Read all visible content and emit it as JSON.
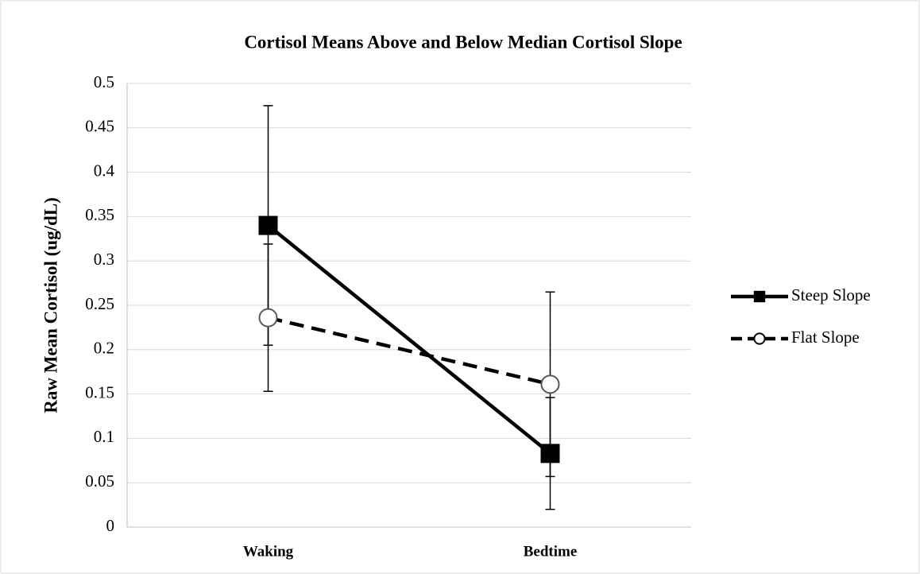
{
  "chart_data": {
    "type": "line",
    "title": "Cortisol Means Above and Below Median Cortisol Slope",
    "y_label": "Raw Mean Cortisol (ug/dL)",
    "categories": [
      "Waking",
      "Bedtime"
    ],
    "series": [
      {
        "name": "Steep Slope",
        "color": "#000000",
        "marker": "square",
        "dashed": false,
        "values": [
          0.34,
          0.083
        ],
        "errors": [
          0.135,
          0.063
        ]
      },
      {
        "name": "Flat Slope",
        "color": "#000000",
        "marker": "circle",
        "dashed": true,
        "values": [
          0.236,
          0.161
        ],
        "errors": [
          0.083,
          0.104
        ]
      }
    ],
    "ylim": [
      0,
      0.5
    ],
    "yticks": [
      0,
      0.05,
      0.1,
      0.15,
      0.2,
      0.25,
      0.3,
      0.35,
      0.4,
      0.45,
      0.5
    ],
    "grid": true,
    "legend": "right"
  }
}
